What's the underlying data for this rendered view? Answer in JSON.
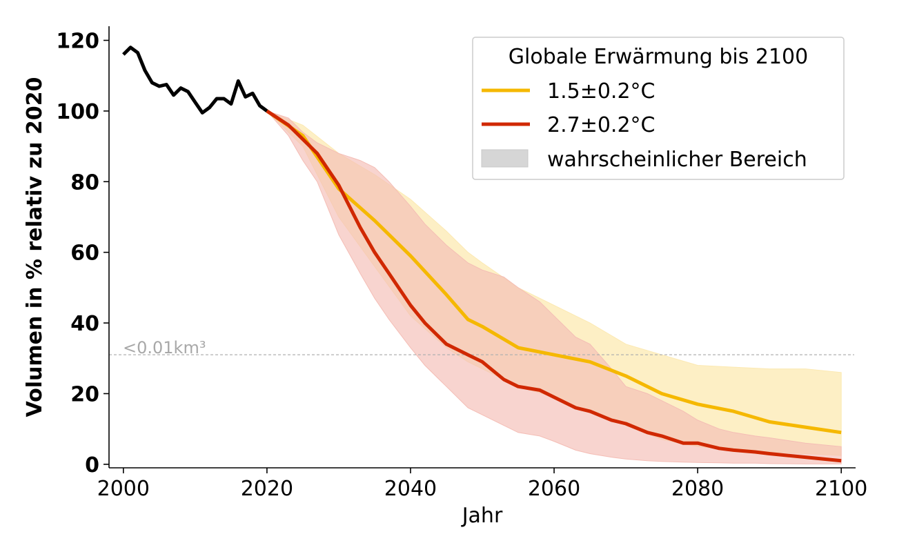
{
  "chart_data": {
    "type": "line",
    "xlabel": "Jahr",
    "ylabel": "Volumen in % relativ zu 2020",
    "xlim": [
      1998,
      2102
    ],
    "ylim": [
      -1,
      124
    ],
    "xticks": [
      "2000",
      "2020",
      "2040",
      "2060",
      "2080",
      "2100"
    ],
    "yticks": [
      "0",
      "20",
      "40",
      "60",
      "80",
      "100",
      "120"
    ],
    "grid": false,
    "legend": {
      "title": "Globale Erwärmung bis 2100",
      "placement": "top-right",
      "entries": [
        "1.5±0.2°C",
        "2.7±0.2°C",
        "wahrscheinlicher Bereich"
      ]
    },
    "reference_line": {
      "y": 31,
      "label": "<0.01km³",
      "color": "#b0b0b0"
    },
    "historical": {
      "color": "#000000",
      "x": [
        2000,
        2001,
        2002,
        2003,
        2004,
        2005,
        2006,
        2007,
        2008,
        2009,
        2010,
        2011,
        2012,
        2013,
        2014,
        2015,
        2016,
        2017,
        2018,
        2019,
        2020
      ],
      "y": [
        116,
        118,
        116.5,
        111.5,
        108,
        107,
        107.5,
        104.5,
        106.5,
        105.5,
        102.5,
        99.5,
        101,
        103.5,
        103.5,
        102,
        108.5,
        104,
        105,
        101.5,
        100
      ]
    },
    "series": [
      {
        "name": "1.5±0.2°C",
        "color": "#f5b800",
        "band_color": "#fce9b2",
        "x": [
          2020,
          2025,
          2030,
          2035,
          2040,
          2045,
          2048,
          2050,
          2055,
          2060,
          2065,
          2070,
          2075,
          2080,
          2085,
          2090,
          2095,
          2100
        ],
        "y": [
          100,
          93,
          78,
          69,
          59,
          48,
          41,
          39,
          33,
          31,
          29,
          25,
          20,
          17,
          15,
          12,
          10.5,
          9
        ],
        "lower": [
          100,
          90,
          70,
          56,
          42,
          33,
          29,
          27,
          22,
          19,
          15,
          11,
          7,
          5,
          4,
          3.5,
          3,
          2.5
        ],
        "upper": [
          100,
          96,
          88,
          82,
          75,
          66,
          60,
          57,
          50,
          45,
          40,
          34,
          31,
          28,
          27.5,
          27,
          27,
          26
        ]
      },
      {
        "name": "2.7±0.2°C",
        "color": "#d02800",
        "band_color": "#f4bdb5",
        "x": [
          2020,
          2023,
          2025,
          2027,
          2030,
          2033,
          2035,
          2037,
          2040,
          2042,
          2045,
          2048,
          2050,
          2053,
          2055,
          2058,
          2060,
          2063,
          2065,
          2068,
          2070,
          2073,
          2075,
          2078,
          2080,
          2083,
          2085,
          2088,
          2090,
          2095,
          2100
        ],
        "y": [
          100,
          96,
          92,
          88,
          79,
          67,
          60,
          54,
          45,
          40,
          34,
          31,
          29,
          24,
          22,
          21,
          19,
          16,
          15,
          12.5,
          11.5,
          9,
          8,
          6,
          6,
          4.5,
          4,
          3.5,
          3,
          2,
          1
        ],
        "lower": [
          100,
          93,
          86,
          80,
          65,
          54,
          47,
          41,
          33,
          28,
          22,
          16,
          14,
          11,
          9,
          8,
          6.5,
          4,
          3,
          2,
          1.5,
          1,
          0.8,
          0.6,
          0.5,
          0.4,
          0.3,
          0.3,
          0.2,
          0.1,
          0.1
        ],
        "upper": [
          100,
          98,
          94,
          91,
          88,
          86,
          84,
          80,
          73,
          68,
          62,
          57,
          55,
          53,
          50,
          46,
          42,
          36,
          34,
          27,
          22,
          20,
          18,
          15,
          12.5,
          10,
          9,
          8,
          7.5,
          6,
          5
        ]
      }
    ]
  }
}
